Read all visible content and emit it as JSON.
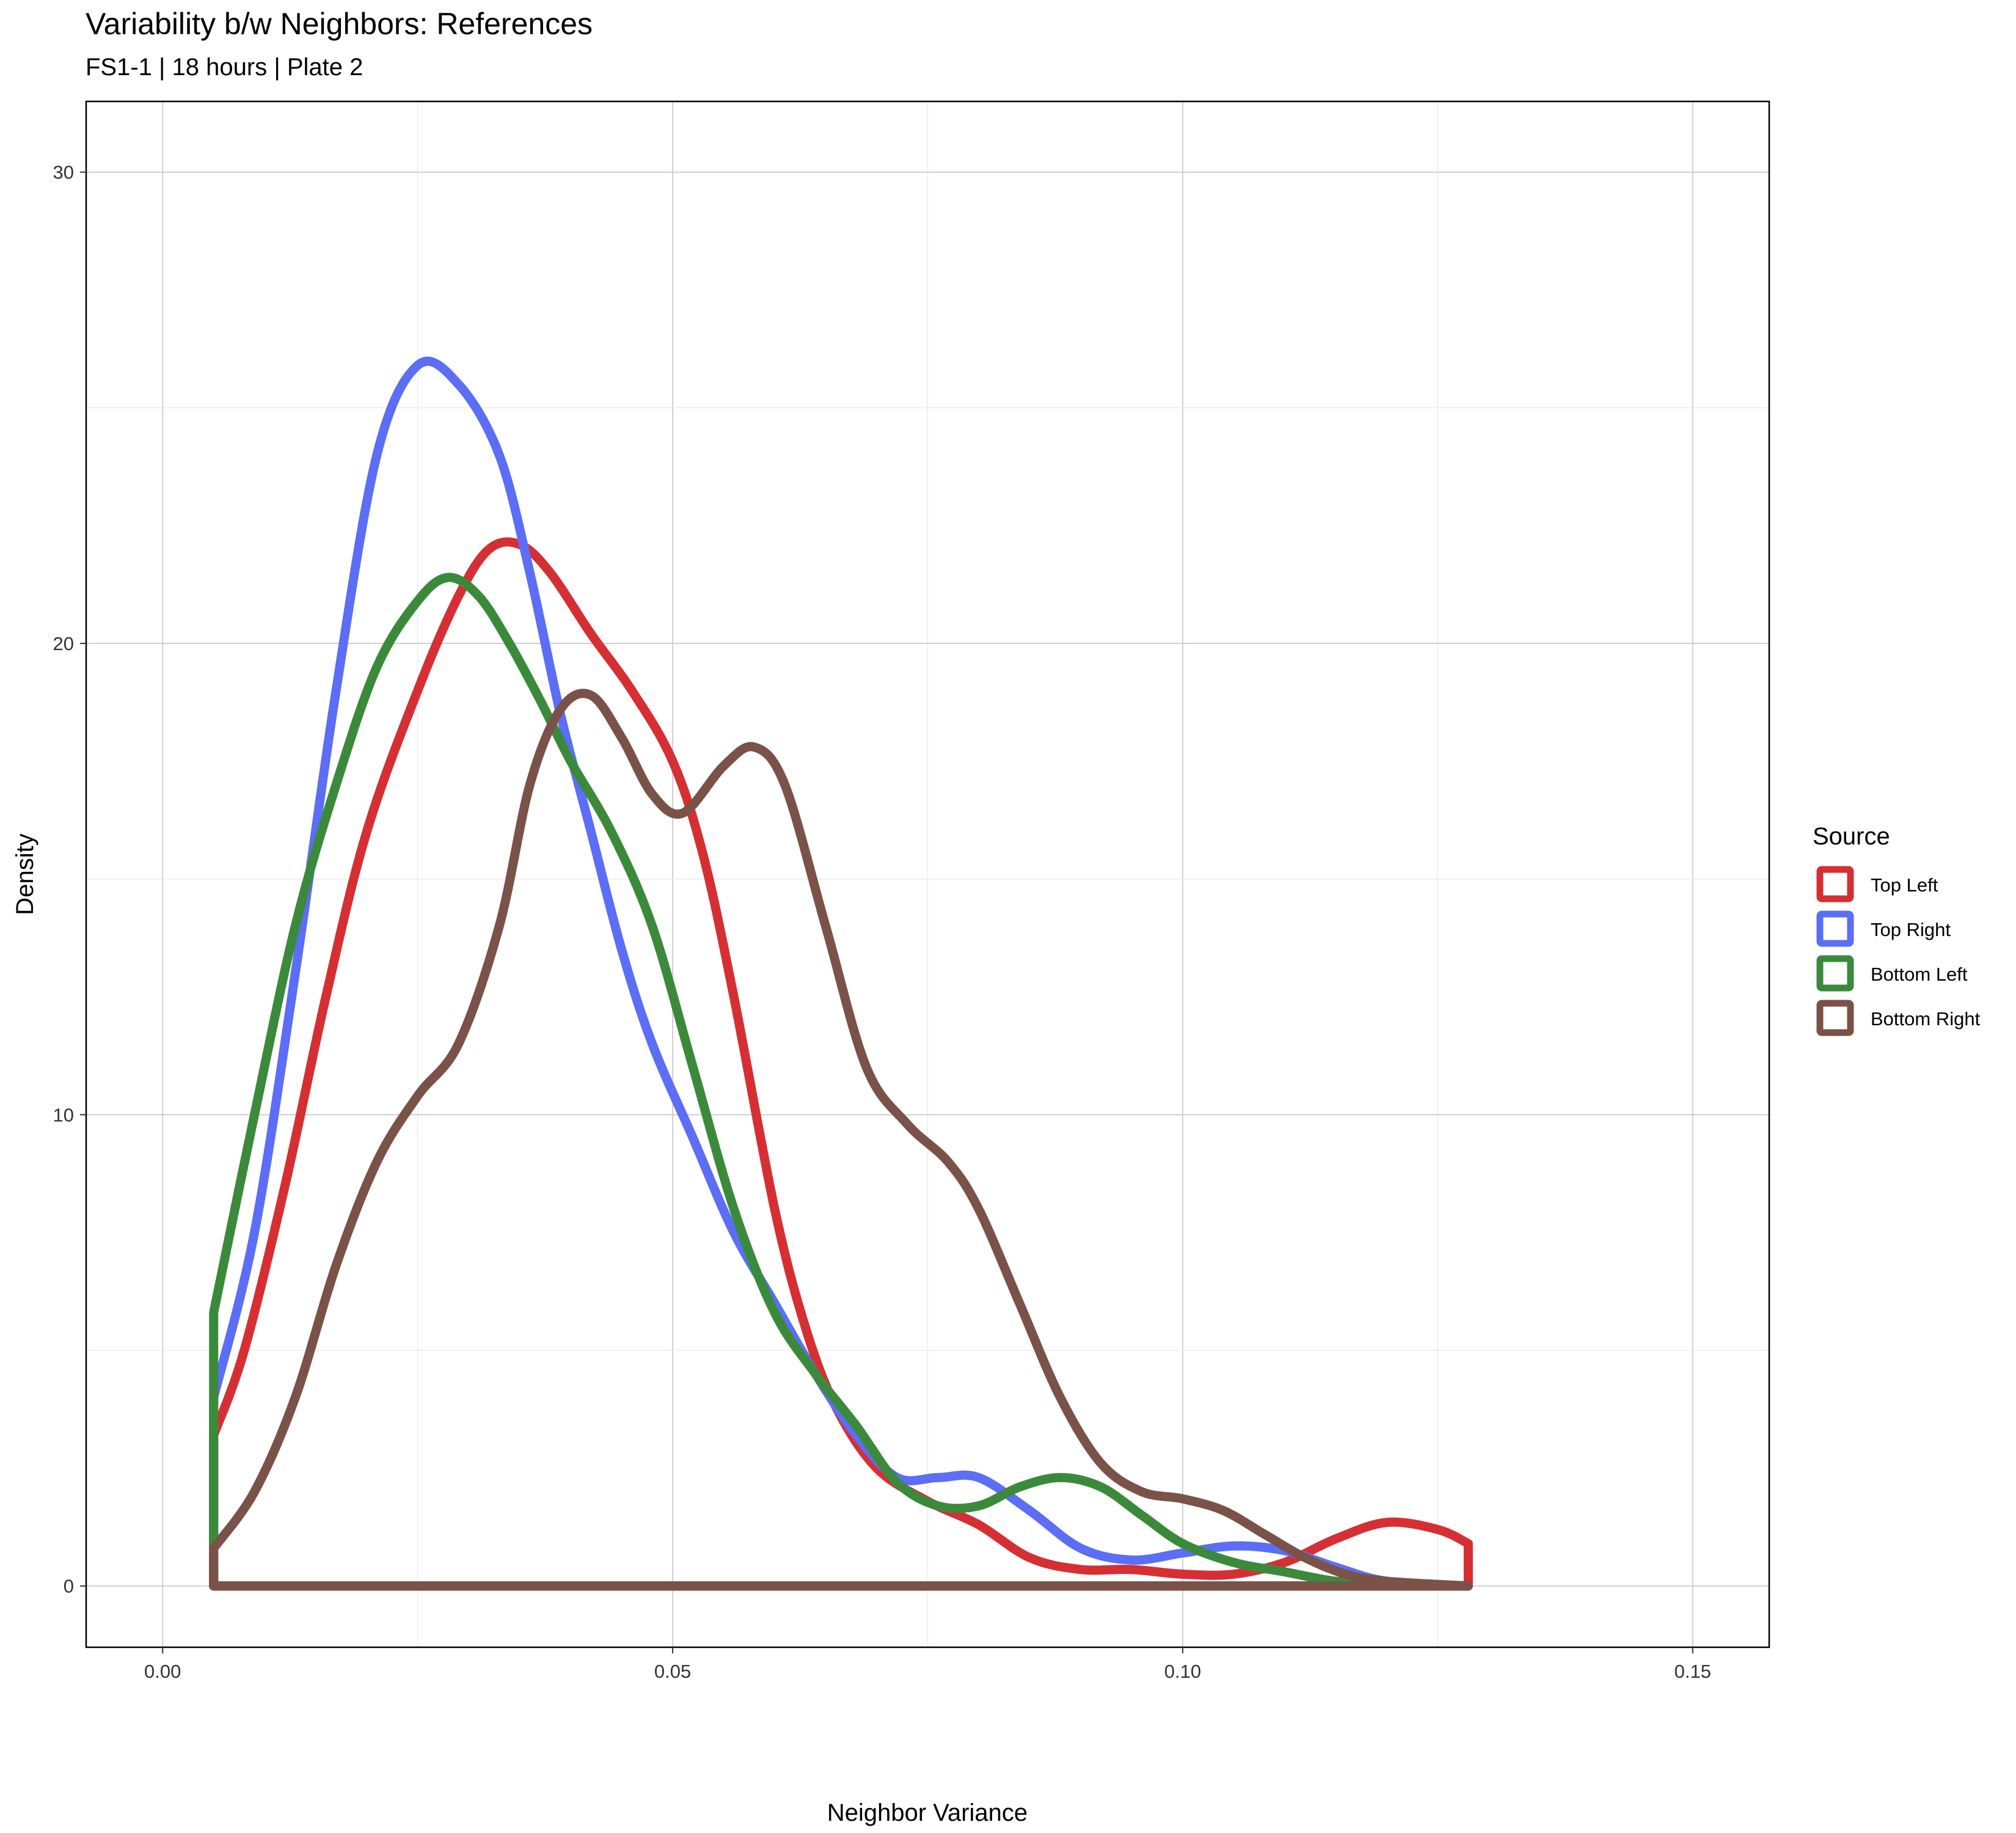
{
  "chart_data": {
    "type": "line",
    "title": "Variability b/w Neighbors: References",
    "subtitle": "FS1-1 | 18 hours | Plate 2",
    "xlabel": "Neighbor Variance",
    "ylabel": "Density",
    "xlim": [
      -0.0075,
      0.1575
    ],
    "ylim": [
      -1.3,
      31.5
    ],
    "x_ticks": [
      0.0,
      0.05,
      0.1,
      0.15
    ],
    "x_tick_labels": [
      "0.00",
      "0.05",
      "0.10",
      "0.15"
    ],
    "y_ticks": [
      0,
      10,
      20,
      30
    ],
    "y_tick_labels": [
      "0",
      "10",
      "20",
      "30"
    ],
    "grid": true,
    "legend": {
      "title": "Source",
      "position": "right"
    },
    "series": [
      {
        "name": "Top Left",
        "color": "#d62f33",
        "points": [
          [
            0.005,
            0
          ],
          [
            0.005,
            3.2
          ],
          [
            0.008,
            5.0
          ],
          [
            0.012,
            8.5
          ],
          [
            0.016,
            12.5
          ],
          [
            0.02,
            16.0
          ],
          [
            0.025,
            19.0
          ],
          [
            0.029,
            21.0
          ],
          [
            0.032,
            22.0
          ],
          [
            0.035,
            22.1
          ],
          [
            0.038,
            21.5
          ],
          [
            0.042,
            20.2
          ],
          [
            0.046,
            19.0
          ],
          [
            0.05,
            17.5
          ],
          [
            0.053,
            15.5
          ],
          [
            0.056,
            12.5
          ],
          [
            0.06,
            8.0
          ],
          [
            0.063,
            5.5
          ],
          [
            0.066,
            3.8
          ],
          [
            0.07,
            2.5
          ],
          [
            0.075,
            1.8
          ],
          [
            0.08,
            1.3
          ],
          [
            0.085,
            0.6
          ],
          [
            0.09,
            0.35
          ],
          [
            0.095,
            0.35
          ],
          [
            0.1,
            0.25
          ],
          [
            0.105,
            0.25
          ],
          [
            0.11,
            0.5
          ],
          [
            0.115,
            1.0
          ],
          [
            0.12,
            1.35
          ],
          [
            0.125,
            1.2
          ],
          [
            0.128,
            0.9
          ],
          [
            0.128,
            0
          ]
        ]
      },
      {
        "name": "Top Right",
        "color": "#5b6ef5",
        "points": [
          [
            0.005,
            0
          ],
          [
            0.005,
            4.0
          ],
          [
            0.009,
            7.5
          ],
          [
            0.013,
            13.0
          ],
          [
            0.017,
            19.0
          ],
          [
            0.021,
            24.0
          ],
          [
            0.025,
            25.9
          ],
          [
            0.029,
            25.5
          ],
          [
            0.033,
            24.0
          ],
          [
            0.036,
            21.5
          ],
          [
            0.039,
            18.5
          ],
          [
            0.042,
            16.0
          ],
          [
            0.045,
            13.5
          ],
          [
            0.048,
            11.5
          ],
          [
            0.052,
            9.5
          ],
          [
            0.056,
            7.5
          ],
          [
            0.06,
            6.0
          ],
          [
            0.064,
            4.5
          ],
          [
            0.068,
            3.2
          ],
          [
            0.072,
            2.3
          ],
          [
            0.076,
            2.3
          ],
          [
            0.08,
            2.3
          ],
          [
            0.085,
            1.6
          ],
          [
            0.09,
            0.8
          ],
          [
            0.095,
            0.55
          ],
          [
            0.1,
            0.7
          ],
          [
            0.105,
            0.85
          ],
          [
            0.11,
            0.75
          ],
          [
            0.115,
            0.4
          ],
          [
            0.12,
            0.1
          ],
          [
            0.128,
            0
          ],
          [
            0.005,
            0
          ]
        ]
      },
      {
        "name": "Bottom Left",
        "color": "#3b8a3b",
        "points": [
          [
            0.005,
            0
          ],
          [
            0.005,
            5.8
          ],
          [
            0.009,
            10.0
          ],
          [
            0.013,
            14.0
          ],
          [
            0.017,
            17.0
          ],
          [
            0.021,
            19.5
          ],
          [
            0.025,
            20.9
          ],
          [
            0.028,
            21.4
          ],
          [
            0.031,
            21.0
          ],
          [
            0.034,
            20.0
          ],
          [
            0.037,
            18.8
          ],
          [
            0.04,
            17.5
          ],
          [
            0.044,
            16.0
          ],
          [
            0.048,
            14.0
          ],
          [
            0.052,
            11.0
          ],
          [
            0.056,
            8.0
          ],
          [
            0.06,
            5.8
          ],
          [
            0.064,
            4.5
          ],
          [
            0.068,
            3.4
          ],
          [
            0.072,
            2.2
          ],
          [
            0.076,
            1.7
          ],
          [
            0.08,
            1.7
          ],
          [
            0.084,
            2.1
          ],
          [
            0.088,
            2.3
          ],
          [
            0.092,
            2.1
          ],
          [
            0.096,
            1.5
          ],
          [
            0.1,
            0.9
          ],
          [
            0.105,
            0.5
          ],
          [
            0.11,
            0.3
          ],
          [
            0.115,
            0.1
          ],
          [
            0.12,
            0.05
          ],
          [
            0.128,
            0
          ],
          [
            0.005,
            0
          ]
        ]
      },
      {
        "name": "Bottom Right",
        "color": "#7a5248",
        "points": [
          [
            0.005,
            0
          ],
          [
            0.005,
            0.8
          ],
          [
            0.009,
            2.0
          ],
          [
            0.013,
            4.0
          ],
          [
            0.017,
            6.8
          ],
          [
            0.021,
            9.0
          ],
          [
            0.025,
            10.4
          ],
          [
            0.029,
            11.5
          ],
          [
            0.033,
            14.0
          ],
          [
            0.036,
            17.0
          ],
          [
            0.039,
            18.6
          ],
          [
            0.042,
            18.9
          ],
          [
            0.045,
            18.0
          ],
          [
            0.048,
            16.8
          ],
          [
            0.051,
            16.4
          ],
          [
            0.055,
            17.4
          ],
          [
            0.058,
            17.8
          ],
          [
            0.061,
            17.0
          ],
          [
            0.065,
            14.0
          ],
          [
            0.069,
            11.0
          ],
          [
            0.073,
            9.8
          ],
          [
            0.077,
            9.0
          ],
          [
            0.08,
            8.0
          ],
          [
            0.084,
            6.0
          ],
          [
            0.088,
            4.0
          ],
          [
            0.092,
            2.6
          ],
          [
            0.096,
            2.0
          ],
          [
            0.1,
            1.85
          ],
          [
            0.104,
            1.6
          ],
          [
            0.108,
            1.1
          ],
          [
            0.112,
            0.6
          ],
          [
            0.116,
            0.25
          ],
          [
            0.12,
            0.1
          ],
          [
            0.128,
            0
          ],
          [
            0.005,
            0
          ]
        ]
      }
    ]
  }
}
